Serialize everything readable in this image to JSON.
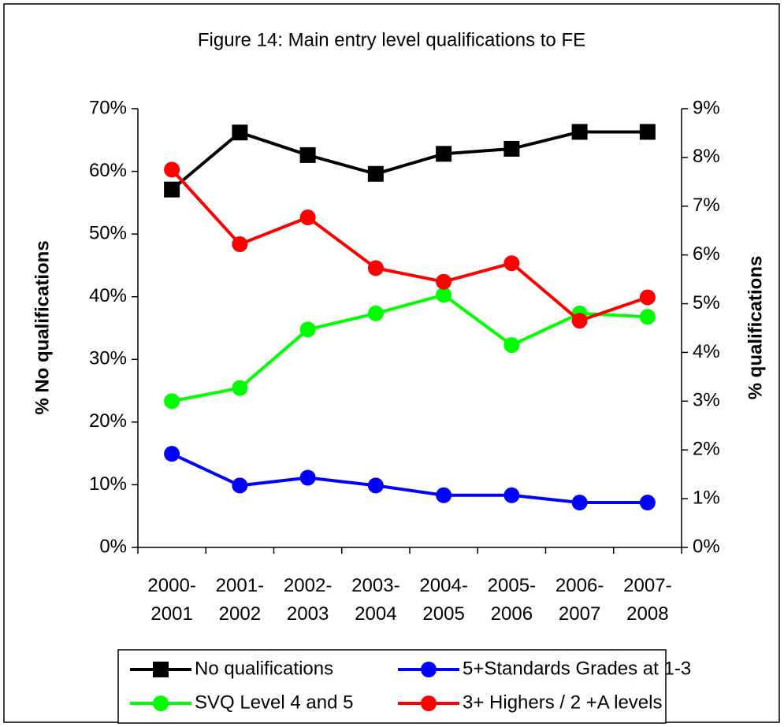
{
  "chart_data": {
    "type": "line",
    "title": "Figure 14: Main entry level qualifications to FE",
    "ylabel": "% No qualifications",
    "y2label": "% qualifications",
    "categories": [
      "2000-2001",
      "2001-2002",
      "2002-2003",
      "2003-2004",
      "2004-2005",
      "2005-2006",
      "2006-2007",
      "2007-2008"
    ],
    "ylim": [
      0,
      0.7
    ],
    "yticks": [
      {
        "value": 0,
        "label": "0%"
      },
      {
        "value": 0.1,
        "label": "10%"
      },
      {
        "value": 0.2,
        "label": "20%"
      },
      {
        "value": 0.3,
        "label": "30%"
      },
      {
        "value": 0.4,
        "label": "40%"
      },
      {
        "value": 0.5,
        "label": "50%"
      },
      {
        "value": 0.6,
        "label": "60%"
      },
      {
        "value": 0.7,
        "label": "70%"
      }
    ],
    "y2lim": [
      0,
      0.09
    ],
    "y2ticks": [
      {
        "value": 0,
        "label": "0%"
      },
      {
        "value": 0.01,
        "label": "1%"
      },
      {
        "value": 0.02,
        "label": "2%"
      },
      {
        "value": 0.03,
        "label": "3%"
      },
      {
        "value": 0.04,
        "label": "4%"
      },
      {
        "value": 0.05,
        "label": "5%"
      },
      {
        "value": 0.06,
        "label": "6%"
      },
      {
        "value": 0.07,
        "label": "7%"
      },
      {
        "value": 0.08,
        "label": "8%"
      },
      {
        "value": 0.09,
        "label": "9%"
      }
    ],
    "series": [
      {
        "name": "No qualifications",
        "color": "#000000",
        "marker": "square",
        "axis": "y",
        "values": [
          0.571,
          0.662,
          0.626,
          0.596,
          0.628,
          0.636,
          0.663,
          0.663
        ]
      },
      {
        "name": "5+Standards Grades at 1-3",
        "color": "#0000ff",
        "marker": "circle",
        "axis": "y2",
        "values": [
          0.0192,
          0.0127,
          0.0143,
          0.0127,
          0.0107,
          0.0107,
          0.0092,
          0.0092
        ]
      },
      {
        "name": "SVQ Level 4 and 5",
        "color": "#00ff00",
        "marker": "circle",
        "axis": "y2",
        "values": [
          0.03,
          0.0327,
          0.0447,
          0.048,
          0.0518,
          0.0415,
          0.048,
          0.0473
        ]
      },
      {
        "name": "3+ Highers / 2 +A levels",
        "color": "#ff0000",
        "marker": "circle",
        "axis": "y2",
        "values": [
          0.0775,
          0.0622,
          0.0677,
          0.0573,
          0.0545,
          0.0583,
          0.0465,
          0.0513
        ]
      }
    ],
    "legend": "bottom"
  }
}
